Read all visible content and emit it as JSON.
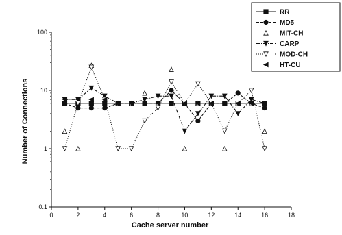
{
  "chart_data": {
    "type": "line",
    "title": "",
    "xlabel": "Cache server number",
    "ylabel": "Number of Connections",
    "xlim": [
      0,
      18
    ],
    "ylim": [
      0.1,
      100
    ],
    "y_scale": "log",
    "grid": false,
    "legend_position": "top-right",
    "x_ticks": [
      0,
      2,
      4,
      6,
      8,
      10,
      12,
      14,
      16,
      18
    ],
    "x_tick_labels": [
      "0",
      "2",
      "4",
      "6",
      "8",
      "10",
      "12",
      "14",
      "16",
      "18"
    ],
    "y_ticks": [
      0.1,
      1,
      10,
      100
    ],
    "y_tick_labels": [
      "0.1",
      "1",
      "10",
      "100"
    ],
    "x": [
      1,
      2,
      3,
      4,
      5,
      6,
      7,
      8,
      9,
      10,
      11,
      12,
      13,
      14,
      15,
      16
    ],
    "series": [
      {
        "name": "RR",
        "marker": "square",
        "dash": "solid",
        "values": [
          6,
          6,
          6,
          6,
          6,
          6,
          6,
          6,
          6,
          6,
          6,
          6,
          6,
          6,
          6,
          6
        ]
      },
      {
        "name": "MD5",
        "marker": "circle",
        "dash": "dashed",
        "values": [
          6,
          5,
          5,
          5,
          6,
          6,
          6,
          6,
          10,
          6,
          3,
          6,
          6,
          9,
          6,
          5
        ]
      },
      {
        "name": "MIT-CH",
        "marker": "triangle-up-open",
        "dash": "none",
        "values": [
          2,
          1,
          27,
          7,
          6,
          6,
          9,
          6,
          23,
          1,
          6,
          6,
          1,
          6,
          6,
          2
        ]
      },
      {
        "name": "CARP",
        "marker": "triangle-down",
        "dash": "dashdot",
        "values": [
          7,
          7,
          11,
          8,
          6,
          6,
          7,
          8,
          8,
          2,
          4,
          8,
          8,
          4,
          7,
          6
        ]
      },
      {
        "name": "MOD-CH",
        "marker": "triangle-down-open",
        "dash": "dotted",
        "values": [
          1,
          6,
          25,
          7,
          1,
          1,
          3,
          5,
          14,
          6,
          13,
          6,
          2,
          6,
          10,
          1
        ]
      },
      {
        "name": "HT-CU",
        "marker": "triangle-left",
        "dash": "none",
        "values": [
          7,
          7,
          7,
          7,
          6,
          6,
          6,
          6,
          6,
          6,
          6,
          6,
          6,
          6,
          6,
          6
        ]
      }
    ]
  }
}
